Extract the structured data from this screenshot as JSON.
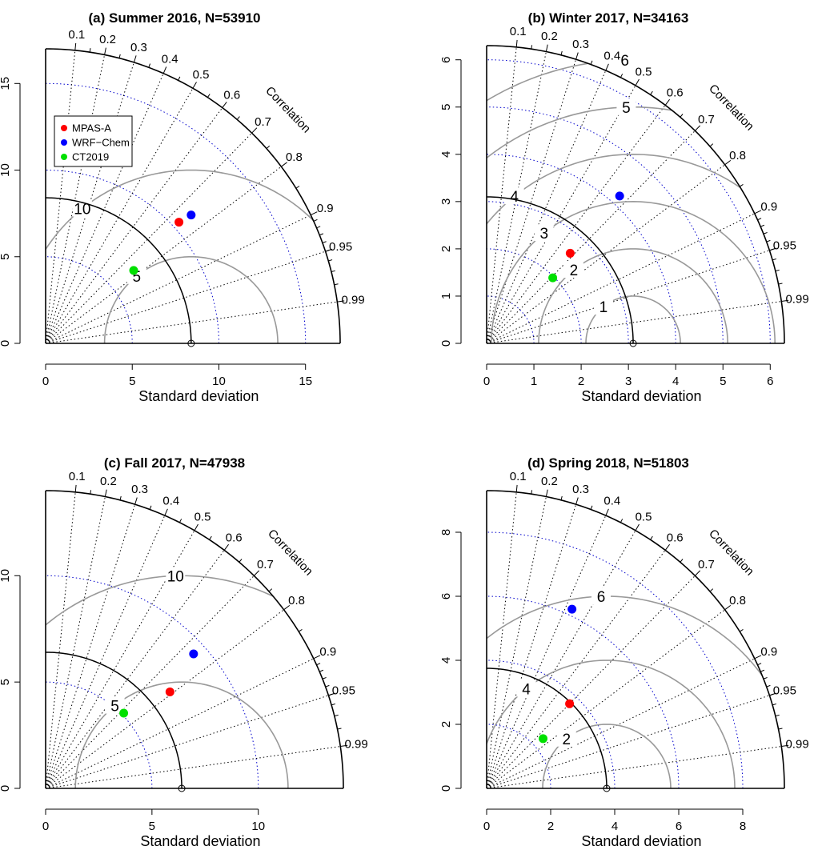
{
  "colors": {
    "MPAS-A": "#ff0000",
    "WRF-Chem": "#0000ff",
    "CT2019": "#00e000",
    "rms": "#999999",
    "sdgrid": "#0000cc"
  },
  "common": {
    "xlabel": "Standard deviation",
    "correlation_label": "Correlation",
    "correlation_ticks": [
      0.1,
      0.2,
      0.3,
      0.4,
      0.5,
      0.6,
      0.7,
      0.8,
      0.9,
      0.95,
      0.99
    ],
    "correlation_tick_labels": [
      "0.1",
      "0.2",
      "0.3",
      "0.4",
      "0.5",
      "0.6",
      "0.7",
      "0.8",
      "0.9",
      "0.95",
      "0.99"
    ],
    "legend": [
      "MPAS-A",
      "WRF−Chem",
      "CT2019"
    ]
  },
  "chart_data": [
    {
      "type": "scatter",
      "subtype": "taylor-diagram",
      "title": "(a) Summer 2016, N=53910",
      "xlabel": "Standard deviation",
      "sd_max": 17,
      "xticks": [
        0,
        5,
        10,
        15
      ],
      "xtick_labels": [
        "0",
        "5",
        "10",
        "15"
      ],
      "yticks": [
        0,
        5,
        10,
        15
      ],
      "ytick_labels": [
        "0",
        "5",
        "10",
        "15"
      ],
      "ref_sd": 8.4,
      "rms_circles": [
        5,
        10
      ],
      "rms_labels": [
        "5",
        "10"
      ],
      "legend": true,
      "legend_position": "top-left",
      "series": [
        {
          "name": "MPAS-A",
          "sd": 10.4,
          "r": 0.74
        },
        {
          "name": "WRF−Chem",
          "sd": 11.2,
          "r": 0.75
        },
        {
          "name": "CT2019",
          "sd": 6.6,
          "r": 0.77
        }
      ]
    },
    {
      "type": "scatter",
      "subtype": "taylor-diagram",
      "title": "(b) Winter 2017, N=34163",
      "xlabel": "Standard deviation",
      "sd_max": 6.3,
      "xticks": [
        0,
        1,
        2,
        3,
        4,
        5,
        6
      ],
      "xtick_labels": [
        "0",
        "1",
        "2",
        "3",
        "4",
        "5",
        "6"
      ],
      "yticks": [
        0,
        1,
        2,
        3,
        4,
        5,
        6
      ],
      "ytick_labels": [
        "0",
        "1",
        "2",
        "3",
        "4",
        "5",
        "6"
      ],
      "ref_sd": 3.1,
      "rms_circles": [
        1,
        2,
        3,
        4,
        5,
        6
      ],
      "rms_labels": [
        "1",
        "2",
        "3",
        "4",
        "5",
        "6"
      ],
      "legend": false,
      "series": [
        {
          "name": "MPAS-A",
          "sd": 2.6,
          "r": 0.68
        },
        {
          "name": "WRF−Chem",
          "sd": 4.2,
          "r": 0.67
        },
        {
          "name": "CT2019",
          "sd": 1.97,
          "r": 0.71
        }
      ]
    },
    {
      "type": "scatter",
      "subtype": "taylor-diagram",
      "title": "(c) Fall 2017, N=47938",
      "xlabel": "Standard deviation",
      "sd_max": 14,
      "xticks": [
        0,
        5,
        10
      ],
      "xtick_labels": [
        "0",
        "5",
        "10"
      ],
      "yticks": [
        0,
        5,
        10
      ],
      "ytick_labels": [
        "0",
        "5",
        "10"
      ],
      "ref_sd": 6.4,
      "rms_circles": [
        5,
        10
      ],
      "rms_labels": [
        "5",
        "10"
      ],
      "legend": false,
      "series": [
        {
          "name": "MPAS-A",
          "sd": 7.4,
          "r": 0.79
        },
        {
          "name": "WRF−Chem",
          "sd": 9.4,
          "r": 0.74
        },
        {
          "name": "CT2019",
          "sd": 5.1,
          "r": 0.72
        }
      ]
    },
    {
      "type": "scatter",
      "subtype": "taylor-diagram",
      "title": "(d) Spring 2018, N=51803",
      "xlabel": "Standard deviation",
      "sd_max": 9.3,
      "xticks": [
        0,
        2,
        4,
        6,
        8
      ],
      "xtick_labels": [
        "0",
        "2",
        "4",
        "6",
        "8"
      ],
      "yticks": [
        0,
        2,
        4,
        6,
        8
      ],
      "ytick_labels": [
        "0",
        "2",
        "4",
        "6",
        "8"
      ],
      "ref_sd": 3.75,
      "rms_circles": [
        2,
        4,
        6
      ],
      "rms_labels": [
        "2",
        "4",
        "6"
      ],
      "legend": false,
      "series": [
        {
          "name": "MPAS-A",
          "sd": 3.7,
          "r": 0.7
        },
        {
          "name": "WRF−Chem",
          "sd": 6.2,
          "r": 0.43
        },
        {
          "name": "CT2019",
          "sd": 2.35,
          "r": 0.75
        }
      ]
    }
  ]
}
